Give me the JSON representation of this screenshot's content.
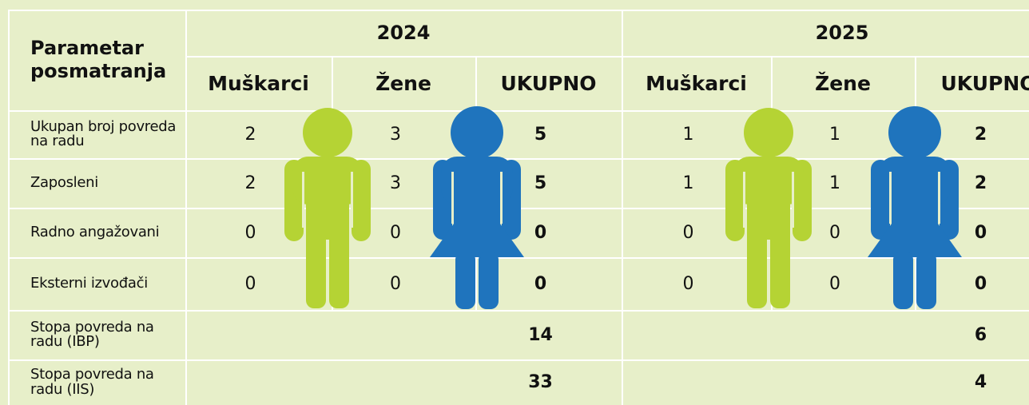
{
  "header": {
    "parameter": "Parametar posmatranja",
    "years": [
      {
        "year": "2024",
        "columns": [
          "Muškarci",
          "Žene",
          "UKUPNO"
        ]
      },
      {
        "year": "2025",
        "columns": [
          "Muškarci",
          "Žene",
          "UKUPNO"
        ]
      }
    ]
  },
  "rows": [
    {
      "label": "Ukupan broj povreda na radu",
      "values": [
        2,
        3,
        5,
        1,
        1,
        2
      ]
    },
    {
      "label": "Zaposleni",
      "values": [
        2,
        3,
        5,
        1,
        1,
        2
      ]
    },
    {
      "label": "Radno angažovani",
      "values": [
        0,
        0,
        0,
        0,
        0,
        0
      ]
    },
    {
      "label": "Eksterni izvođači",
      "values": [
        0,
        0,
        0,
        0,
        0,
        0
      ]
    },
    {
      "label": "Stopa povreda na radu (IBP)",
      "values": [
        14,
        6
      ]
    },
    {
      "label": "Stopa povreda na radu (IIS)",
      "values": [
        33,
        4
      ]
    }
  ]
}
